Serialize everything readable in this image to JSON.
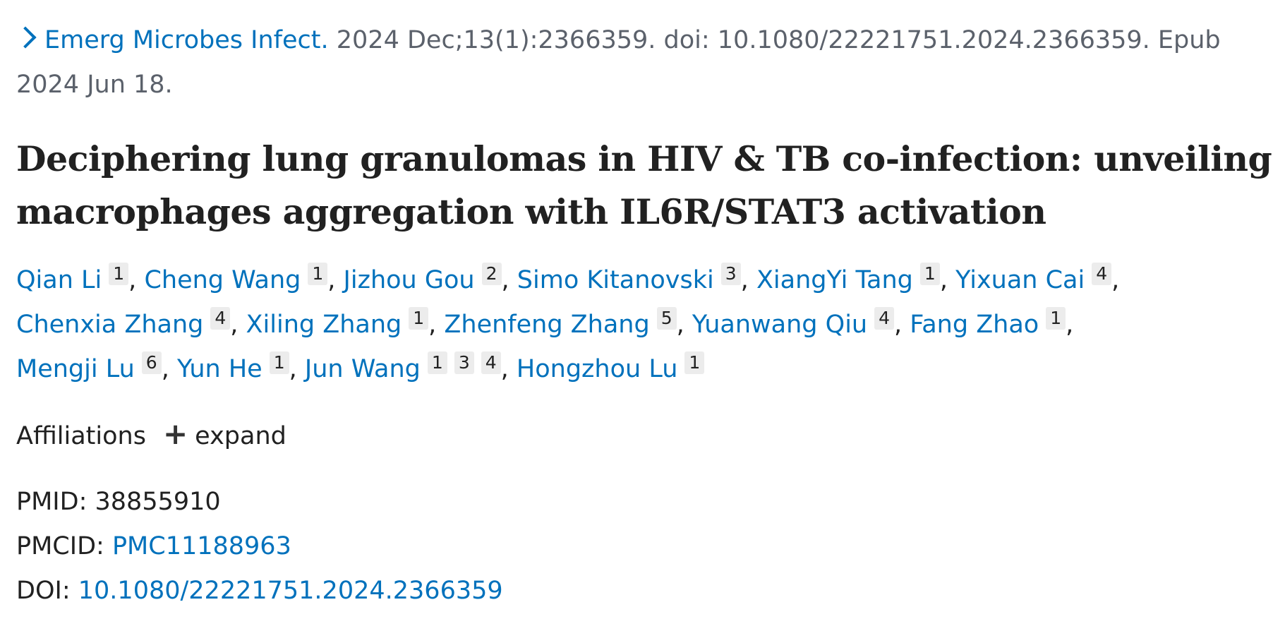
{
  "citation": {
    "journal": "Emerg Microbes Infect.",
    "details": "2024 Dec;13(1):2366359. doi: 10.1080/22221751.2024.2366359. Epub 2024 Jun 18."
  },
  "title": "Deciphering lung granulomas in HIV & TB co-infection: unveiling macrophages aggregation with IL6R/STAT3 activation",
  "author_separator": ",",
  "authors": [
    {
      "name": "Qian Li",
      "affiliations": [
        1
      ]
    },
    {
      "name": "Cheng Wang",
      "affiliations": [
        1
      ]
    },
    {
      "name": "Jizhou Gou",
      "affiliations": [
        2
      ]
    },
    {
      "name": "Simo Kitanovski",
      "affiliations": [
        3
      ]
    },
    {
      "name": "XiangYi Tang",
      "affiliations": [
        1
      ]
    },
    {
      "name": "Yixuan Cai",
      "affiliations": [
        4
      ]
    },
    {
      "name": "Chenxia Zhang",
      "affiliations": [
        4
      ]
    },
    {
      "name": "Xiling Zhang",
      "affiliations": [
        1
      ]
    },
    {
      "name": "Zhenfeng Zhang",
      "affiliations": [
        5
      ]
    },
    {
      "name": "Yuanwang Qiu",
      "affiliations": [
        4
      ]
    },
    {
      "name": "Fang Zhao",
      "affiliations": [
        1
      ]
    },
    {
      "name": "Mengji Lu",
      "affiliations": [
        6
      ]
    },
    {
      "name": "Yun He",
      "affiliations": [
        1
      ]
    },
    {
      "name": "Jun Wang",
      "affiliations": [
        1,
        3,
        4
      ]
    },
    {
      "name": "Hongzhou Lu",
      "affiliations": [
        1
      ]
    }
  ],
  "affiliations": {
    "label": "Affiliations",
    "toggle": "expand"
  },
  "identifiers": [
    {
      "label": "PMID:",
      "value": "38855910",
      "link": false
    },
    {
      "label": "PMCID:",
      "value": "PMC11188963",
      "link": true
    },
    {
      "label": "DOI:",
      "value": "10.1080/22221751.2024.2366359",
      "link": true
    }
  ]
}
